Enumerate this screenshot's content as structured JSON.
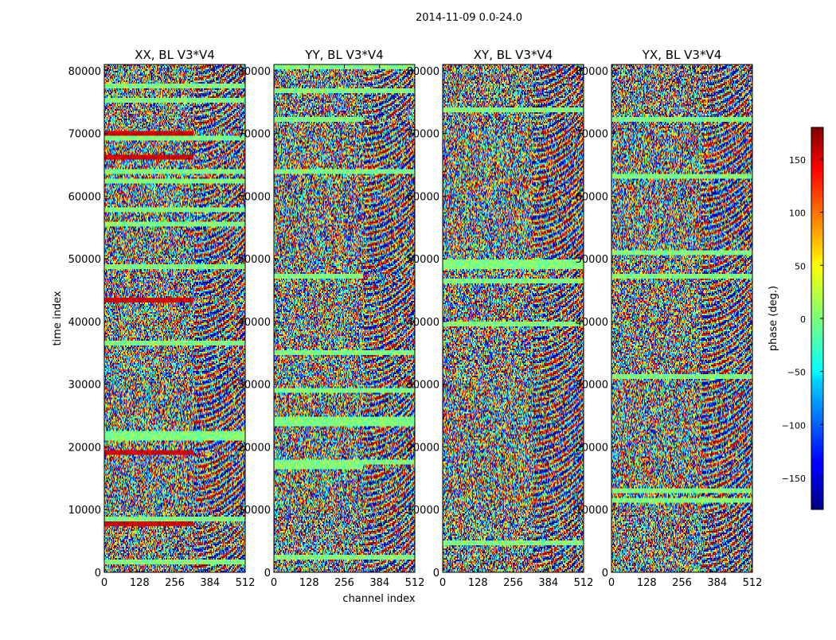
{
  "suptitle": "2014-11-09 0.0-24.0",
  "chart_data": {
    "type": "heatmap",
    "title": "2014-11-09 0.0-24.0",
    "xlabel": "channel index",
    "ylabel": "time index",
    "xlim": [
      0,
      512
    ],
    "ylim": [
      0,
      81000
    ],
    "xticks": [
      0,
      128,
      256,
      384,
      512
    ],
    "yticks": [
      0,
      10000,
      20000,
      30000,
      40000,
      50000,
      60000,
      70000,
      80000
    ],
    "panels": [
      {
        "title": "XX, BL V3*V4"
      },
      {
        "title": "YY, BL V3*V4"
      },
      {
        "title": "XY, BL V3*V4"
      },
      {
        "title": "YX, BL V3*V4"
      }
    ],
    "colorbar": {
      "label": "phase (deg.)",
      "range": [
        -180,
        180
      ],
      "ticks": [
        -150,
        -100,
        -50,
        0,
        50,
        100,
        150
      ],
      "tick_labels": [
        "−150",
        "−100",
        "−50",
        "0",
        "50",
        "100",
        "150"
      ],
      "colormap": "jet"
    }
  }
}
